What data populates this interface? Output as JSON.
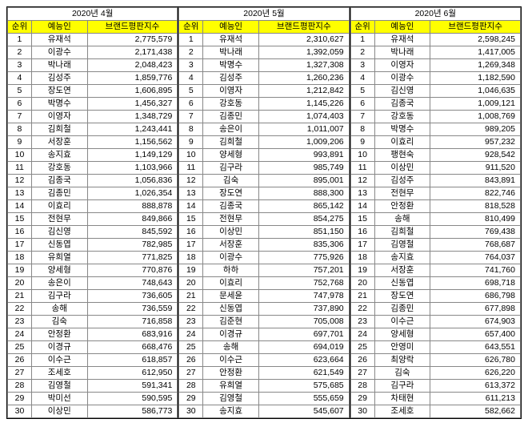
{
  "headers": {
    "rank": "순위",
    "name": "예능인",
    "score": "브랜드평판지수"
  },
  "months": [
    {
      "title": "2020년 4월",
      "rows": [
        {
          "rank": 1,
          "name": "유재석",
          "score": "2,775,579"
        },
        {
          "rank": 2,
          "name": "이광수",
          "score": "2,171,438"
        },
        {
          "rank": 3,
          "name": "박나래",
          "score": "2,048,423"
        },
        {
          "rank": 4,
          "name": "김성주",
          "score": "1,859,776"
        },
        {
          "rank": 5,
          "name": "장도연",
          "score": "1,606,895"
        },
        {
          "rank": 6,
          "name": "박명수",
          "score": "1,456,327"
        },
        {
          "rank": 7,
          "name": "이영자",
          "score": "1,348,729"
        },
        {
          "rank": 8,
          "name": "김희철",
          "score": "1,243,441"
        },
        {
          "rank": 9,
          "name": "서장훈",
          "score": "1,156,562"
        },
        {
          "rank": 10,
          "name": "송지효",
          "score": "1,149,129"
        },
        {
          "rank": 11,
          "name": "강호동",
          "score": "1,103,966"
        },
        {
          "rank": 12,
          "name": "김종국",
          "score": "1,056,836"
        },
        {
          "rank": 13,
          "name": "김종민",
          "score": "1,026,354"
        },
        {
          "rank": 14,
          "name": "이효리",
          "score": "888,878"
        },
        {
          "rank": 15,
          "name": "전현무",
          "score": "849,866"
        },
        {
          "rank": 16,
          "name": "김신영",
          "score": "845,592"
        },
        {
          "rank": 17,
          "name": "신동엽",
          "score": "782,985"
        },
        {
          "rank": 18,
          "name": "유희열",
          "score": "771,825"
        },
        {
          "rank": 19,
          "name": "양세형",
          "score": "770,876"
        },
        {
          "rank": 20,
          "name": "송은이",
          "score": "748,643"
        },
        {
          "rank": 21,
          "name": "김구라",
          "score": "736,605"
        },
        {
          "rank": 22,
          "name": "송해",
          "score": "736,559"
        },
        {
          "rank": 23,
          "name": "김숙",
          "score": "716,858"
        },
        {
          "rank": 24,
          "name": "안정환",
          "score": "683,916"
        },
        {
          "rank": 25,
          "name": "이경규",
          "score": "668,476"
        },
        {
          "rank": 26,
          "name": "이수근",
          "score": "618,857"
        },
        {
          "rank": 27,
          "name": "조세호",
          "score": "612,950"
        },
        {
          "rank": 28,
          "name": "김영철",
          "score": "591,341"
        },
        {
          "rank": 29,
          "name": "박미선",
          "score": "590,595"
        },
        {
          "rank": 30,
          "name": "이상민",
          "score": "586,773"
        }
      ]
    },
    {
      "title": "2020년 5월",
      "rows": [
        {
          "rank": 1,
          "name": "유재석",
          "score": "2,310,627"
        },
        {
          "rank": 2,
          "name": "박나래",
          "score": "1,392,059"
        },
        {
          "rank": 3,
          "name": "박명수",
          "score": "1,327,308"
        },
        {
          "rank": 4,
          "name": "김성주",
          "score": "1,260,236"
        },
        {
          "rank": 5,
          "name": "이영자",
          "score": "1,212,842"
        },
        {
          "rank": 6,
          "name": "강호동",
          "score": "1,145,226"
        },
        {
          "rank": 7,
          "name": "김종민",
          "score": "1,074,403"
        },
        {
          "rank": 8,
          "name": "송은이",
          "score": "1,011,007"
        },
        {
          "rank": 9,
          "name": "김희철",
          "score": "1,009,206"
        },
        {
          "rank": 10,
          "name": "양세형",
          "score": "993,891"
        },
        {
          "rank": 11,
          "name": "김구라",
          "score": "985,749"
        },
        {
          "rank": 12,
          "name": "김숙",
          "score": "895,001"
        },
        {
          "rank": 13,
          "name": "장도연",
          "score": "888,300"
        },
        {
          "rank": 14,
          "name": "김종국",
          "score": "865,142"
        },
        {
          "rank": 15,
          "name": "전현무",
          "score": "854,275"
        },
        {
          "rank": 16,
          "name": "이상민",
          "score": "851,150"
        },
        {
          "rank": 17,
          "name": "서장훈",
          "score": "835,306"
        },
        {
          "rank": 18,
          "name": "이광수",
          "score": "775,926"
        },
        {
          "rank": 19,
          "name": "하하",
          "score": "757,201"
        },
        {
          "rank": 20,
          "name": "이효리",
          "score": "752,768"
        },
        {
          "rank": 21,
          "name": "문세윤",
          "score": "747,978"
        },
        {
          "rank": 22,
          "name": "신동엽",
          "score": "737,890"
        },
        {
          "rank": 23,
          "name": "김준현",
          "score": "705,008"
        },
        {
          "rank": 24,
          "name": "이경규",
          "score": "697,701"
        },
        {
          "rank": 25,
          "name": "송해",
          "score": "694,019"
        },
        {
          "rank": 26,
          "name": "이수근",
          "score": "623,664"
        },
        {
          "rank": 27,
          "name": "안정환",
          "score": "621,549"
        },
        {
          "rank": 28,
          "name": "유희열",
          "score": "575,685"
        },
        {
          "rank": 29,
          "name": "김영철",
          "score": "555,659"
        },
        {
          "rank": 30,
          "name": "송지효",
          "score": "545,607"
        }
      ]
    },
    {
      "title": "2020년 6월",
      "rows": [
        {
          "rank": 1,
          "name": "유재석",
          "score": "2,598,245"
        },
        {
          "rank": 2,
          "name": "박나래",
          "score": "1,417,005"
        },
        {
          "rank": 3,
          "name": "이영자",
          "score": "1,269,348"
        },
        {
          "rank": 4,
          "name": "이광수",
          "score": "1,182,590"
        },
        {
          "rank": 5,
          "name": "김신영",
          "score": "1,046,635"
        },
        {
          "rank": 6,
          "name": "김종국",
          "score": "1,009,121"
        },
        {
          "rank": 7,
          "name": "강호동",
          "score": "1,008,769"
        },
        {
          "rank": 8,
          "name": "박명수",
          "score": "989,205"
        },
        {
          "rank": 9,
          "name": "이효리",
          "score": "957,232"
        },
        {
          "rank": 10,
          "name": "팽현숙",
          "score": "928,542"
        },
        {
          "rank": 11,
          "name": "이상민",
          "score": "911,520"
        },
        {
          "rank": 12,
          "name": "김성주",
          "score": "843,891"
        },
        {
          "rank": 13,
          "name": "전현무",
          "score": "822,746"
        },
        {
          "rank": 14,
          "name": "안정환",
          "score": "818,528"
        },
        {
          "rank": 15,
          "name": "송해",
          "score": "810,499"
        },
        {
          "rank": 16,
          "name": "김희철",
          "score": "769,438"
        },
        {
          "rank": 17,
          "name": "김영철",
          "score": "768,687"
        },
        {
          "rank": 18,
          "name": "송지효",
          "score": "764,037"
        },
        {
          "rank": 19,
          "name": "서장훈",
          "score": "741,760"
        },
        {
          "rank": 20,
          "name": "신동엽",
          "score": "698,718"
        },
        {
          "rank": 21,
          "name": "장도연",
          "score": "686,798"
        },
        {
          "rank": 22,
          "name": "김종민",
          "score": "677,898"
        },
        {
          "rank": 23,
          "name": "이수근",
          "score": "674,903"
        },
        {
          "rank": 24,
          "name": "양세형",
          "score": "657,400"
        },
        {
          "rank": 25,
          "name": "안영미",
          "score": "643,551"
        },
        {
          "rank": 26,
          "name": "최양락",
          "score": "626,780"
        },
        {
          "rank": 27,
          "name": "김숙",
          "score": "626,220"
        },
        {
          "rank": 28,
          "name": "김구라",
          "score": "613,372"
        },
        {
          "rank": 29,
          "name": "차태현",
          "score": "611,213"
        },
        {
          "rank": 30,
          "name": "조세호",
          "score": "582,662"
        }
      ]
    }
  ]
}
